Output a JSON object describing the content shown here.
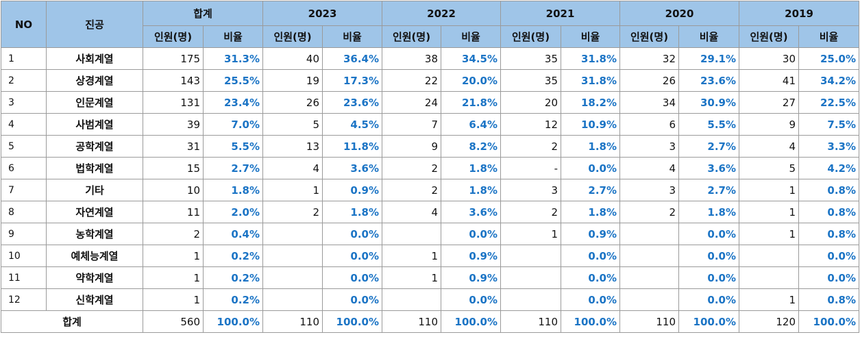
{
  "header": {
    "no": "NO",
    "major": "진공",
    "groups": [
      "합계",
      "2023",
      "2022",
      "2021",
      "2020",
      "2019"
    ],
    "subheaders": [
      "인원(명)",
      "비율",
      "인원(명)",
      "비율",
      "인원(명)",
      "비율",
      "인원(명)",
      "비율",
      "인원(명)",
      "비율",
      "인원(명)",
      "비율"
    ]
  },
  "rows": [
    [
      "1",
      "사회계열",
      "175",
      "31.3%",
      "40",
      "36.4%",
      "38",
      "34.5%",
      "35",
      "31.8%",
      "32",
      "29.1%",
      "30",
      "25.0%"
    ],
    [
      "2",
      "상경계열",
      "143",
      "25.5%",
      "19",
      "17.3%",
      "22",
      "20.0%",
      "35",
      "31.8%",
      "26",
      "23.6%",
      "41",
      "34.2%"
    ],
    [
      "3",
      "인문계열",
      "131",
      "23.4%",
      "26",
      "23.6%",
      "24",
      "21.8%",
      "20",
      "18.2%",
      "34",
      "30.9%",
      "27",
      "22.5%"
    ],
    [
      "4",
      "사범계열",
      "39",
      "7.0%",
      "5",
      "4.5%",
      "7",
      "6.4%",
      "12",
      "10.9%",
      "6",
      "5.5%",
      "9",
      "7.5%"
    ],
    [
      "5",
      "공학계열",
      "31",
      "5.5%",
      "13",
      "11.8%",
      "9",
      "8.2%",
      "2",
      "1.8%",
      "3",
      "2.7%",
      "4",
      "3.3%"
    ],
    [
      "6",
      "법학계열",
      "15",
      "2.7%",
      "4",
      "3.6%",
      "2",
      "1.8%",
      "-",
      "0.0%",
      "4",
      "3.6%",
      "5",
      "4.2%"
    ],
    [
      "7",
      "기타",
      "10",
      "1.8%",
      "1",
      "0.9%",
      "2",
      "1.8%",
      "3",
      "2.7%",
      "3",
      "2.7%",
      "1",
      "0.8%"
    ],
    [
      "8",
      "자연계열",
      "11",
      "2.0%",
      "2",
      "1.8%",
      "4",
      "3.6%",
      "2",
      "1.8%",
      "2",
      "1.8%",
      "1",
      "0.8%"
    ],
    [
      "9",
      "농학계열",
      "2",
      "0.4%",
      null,
      "0.0%",
      null,
      "0.0%",
      "1",
      "0.9%",
      null,
      "0.0%",
      "1",
      "0.8%"
    ],
    [
      "10",
      "예체능계열",
      "1",
      "0.2%",
      null,
      "0.0%",
      "1",
      "0.9%",
      null,
      "0.0%",
      null,
      "0.0%",
      null,
      "0.0%"
    ],
    [
      "11",
      "약학계열",
      "1",
      "0.2%",
      null,
      "0.0%",
      "1",
      "0.9%",
      null,
      "0.0%",
      null,
      "0.0%",
      null,
      "0.0%"
    ],
    [
      "12",
      "신학계열",
      "1",
      "0.2%",
      null,
      "0.0%",
      null,
      "0.0%",
      null,
      "0.0%",
      null,
      "0.0%",
      "1",
      "0.8%"
    ]
  ],
  "total": {
    "label": "합계",
    "cells": [
      "560",
      "100.0%",
      "110",
      "100.0%",
      "110",
      "100.0%",
      "110",
      "100.0%",
      "110",
      "100.0%",
      "120",
      "100.0%"
    ]
  }
}
